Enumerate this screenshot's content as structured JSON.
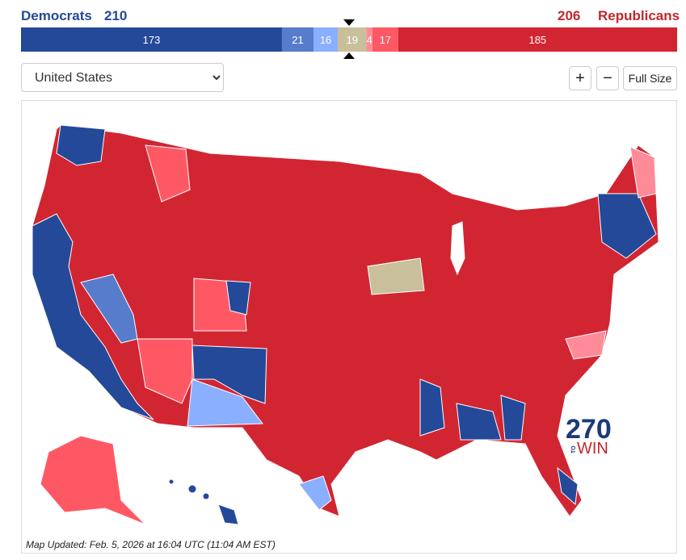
{
  "header": {
    "dem_label": "Democrats",
    "dem_total": 210,
    "rep_total": 206,
    "rep_label": "Republicans"
  },
  "bar": {
    "segments": [
      {
        "value": 173,
        "color": "#244999"
      },
      {
        "value": 21,
        "color": "#577ccc"
      },
      {
        "value": 16,
        "color": "#8aafff"
      },
      {
        "value": 19,
        "color": "#c9c09b"
      },
      {
        "value": 4,
        "color": "#ff8b98"
      },
      {
        "value": 17,
        "color": "#ff5865"
      },
      {
        "value": 185,
        "color": "#d22532"
      }
    ]
  },
  "controls": {
    "region": "United States",
    "zoom_in": "+",
    "zoom_out": "−",
    "full_size": "Full Size"
  },
  "logo": {
    "number": "270",
    "to": "TO",
    "win": "WIN"
  },
  "footnote": "Map Updated: Feb. 5, 2026 at 16:04 UTC (11:04 AM EST)"
}
